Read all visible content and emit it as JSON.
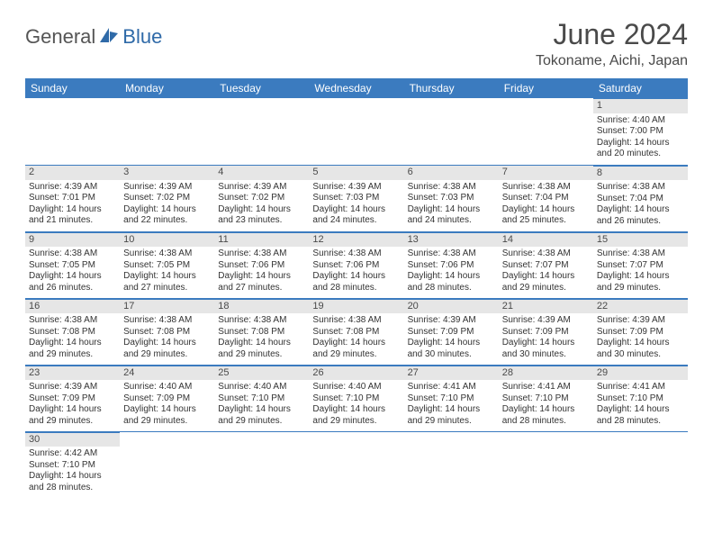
{
  "brand": {
    "part1": "General",
    "part2": "Blue"
  },
  "title": "June 2024",
  "location": "Tokoname, Aichi, Japan",
  "colors": {
    "header_bg": "#3b7bbf",
    "header_text": "#ffffff",
    "daynum_bg": "#e6e6e6",
    "border": "#3b7bbf",
    "brand_gray": "#555555",
    "brand_blue": "#2f6aa8"
  },
  "dayNames": [
    "Sunday",
    "Monday",
    "Tuesday",
    "Wednesday",
    "Thursday",
    "Friday",
    "Saturday"
  ],
  "weeks": [
    [
      null,
      null,
      null,
      null,
      null,
      null,
      {
        "n": "1",
        "sr": "4:40 AM",
        "ss": "7:00 PM",
        "dl": "14 hours and 20 minutes."
      }
    ],
    [
      {
        "n": "2",
        "sr": "4:39 AM",
        "ss": "7:01 PM",
        "dl": "14 hours and 21 minutes."
      },
      {
        "n": "3",
        "sr": "4:39 AM",
        "ss": "7:02 PM",
        "dl": "14 hours and 22 minutes."
      },
      {
        "n": "4",
        "sr": "4:39 AM",
        "ss": "7:02 PM",
        "dl": "14 hours and 23 minutes."
      },
      {
        "n": "5",
        "sr": "4:39 AM",
        "ss": "7:03 PM",
        "dl": "14 hours and 24 minutes."
      },
      {
        "n": "6",
        "sr": "4:38 AM",
        "ss": "7:03 PM",
        "dl": "14 hours and 24 minutes."
      },
      {
        "n": "7",
        "sr": "4:38 AM",
        "ss": "7:04 PM",
        "dl": "14 hours and 25 minutes."
      },
      {
        "n": "8",
        "sr": "4:38 AM",
        "ss": "7:04 PM",
        "dl": "14 hours and 26 minutes."
      }
    ],
    [
      {
        "n": "9",
        "sr": "4:38 AM",
        "ss": "7:05 PM",
        "dl": "14 hours and 26 minutes."
      },
      {
        "n": "10",
        "sr": "4:38 AM",
        "ss": "7:05 PM",
        "dl": "14 hours and 27 minutes."
      },
      {
        "n": "11",
        "sr": "4:38 AM",
        "ss": "7:06 PM",
        "dl": "14 hours and 27 minutes."
      },
      {
        "n": "12",
        "sr": "4:38 AM",
        "ss": "7:06 PM",
        "dl": "14 hours and 28 minutes."
      },
      {
        "n": "13",
        "sr": "4:38 AM",
        "ss": "7:06 PM",
        "dl": "14 hours and 28 minutes."
      },
      {
        "n": "14",
        "sr": "4:38 AM",
        "ss": "7:07 PM",
        "dl": "14 hours and 29 minutes."
      },
      {
        "n": "15",
        "sr": "4:38 AM",
        "ss": "7:07 PM",
        "dl": "14 hours and 29 minutes."
      }
    ],
    [
      {
        "n": "16",
        "sr": "4:38 AM",
        "ss": "7:08 PM",
        "dl": "14 hours and 29 minutes."
      },
      {
        "n": "17",
        "sr": "4:38 AM",
        "ss": "7:08 PM",
        "dl": "14 hours and 29 minutes."
      },
      {
        "n": "18",
        "sr": "4:38 AM",
        "ss": "7:08 PM",
        "dl": "14 hours and 29 minutes."
      },
      {
        "n": "19",
        "sr": "4:38 AM",
        "ss": "7:08 PM",
        "dl": "14 hours and 29 minutes."
      },
      {
        "n": "20",
        "sr": "4:39 AM",
        "ss": "7:09 PM",
        "dl": "14 hours and 30 minutes."
      },
      {
        "n": "21",
        "sr": "4:39 AM",
        "ss": "7:09 PM",
        "dl": "14 hours and 30 minutes."
      },
      {
        "n": "22",
        "sr": "4:39 AM",
        "ss": "7:09 PM",
        "dl": "14 hours and 30 minutes."
      }
    ],
    [
      {
        "n": "23",
        "sr": "4:39 AM",
        "ss": "7:09 PM",
        "dl": "14 hours and 29 minutes."
      },
      {
        "n": "24",
        "sr": "4:40 AM",
        "ss": "7:09 PM",
        "dl": "14 hours and 29 minutes."
      },
      {
        "n": "25",
        "sr": "4:40 AM",
        "ss": "7:10 PM",
        "dl": "14 hours and 29 minutes."
      },
      {
        "n": "26",
        "sr": "4:40 AM",
        "ss": "7:10 PM",
        "dl": "14 hours and 29 minutes."
      },
      {
        "n": "27",
        "sr": "4:41 AM",
        "ss": "7:10 PM",
        "dl": "14 hours and 29 minutes."
      },
      {
        "n": "28",
        "sr": "4:41 AM",
        "ss": "7:10 PM",
        "dl": "14 hours and 28 minutes."
      },
      {
        "n": "29",
        "sr": "4:41 AM",
        "ss": "7:10 PM",
        "dl": "14 hours and 28 minutes."
      }
    ],
    [
      {
        "n": "30",
        "sr": "4:42 AM",
        "ss": "7:10 PM",
        "dl": "14 hours and 28 minutes."
      },
      null,
      null,
      null,
      null,
      null,
      null
    ]
  ],
  "labels": {
    "sunrise": "Sunrise:",
    "sunset": "Sunset:",
    "daylight": "Daylight:"
  }
}
